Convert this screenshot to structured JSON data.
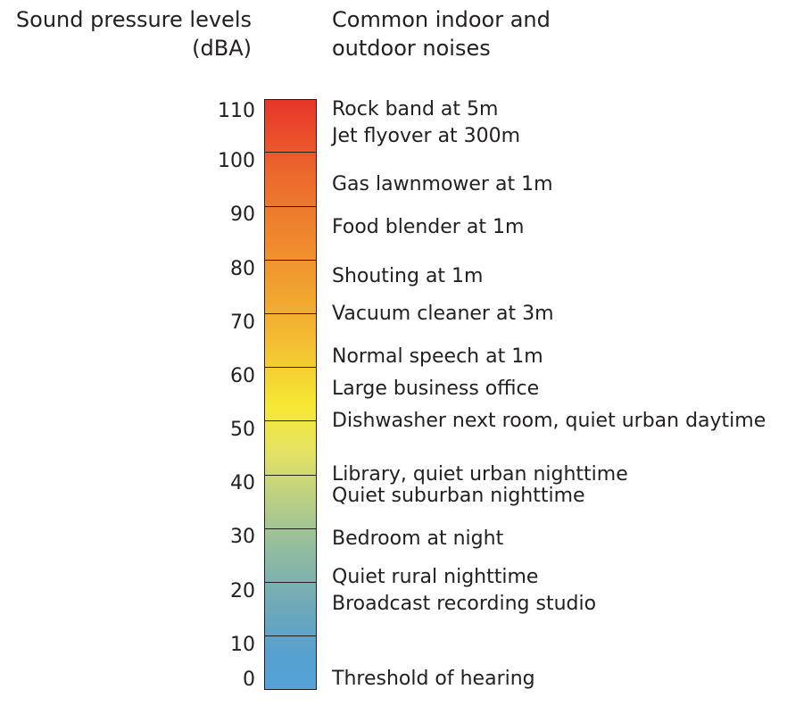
{
  "header": {
    "left_line1": "Sound pressure levels",
    "left_line2": "(dBA)",
    "right_line1": "Common indoor and",
    "right_line2": "outdoor noises"
  },
  "scale": {
    "min": 0,
    "max": 110,
    "ticks": [
      "110",
      "100",
      "90",
      "80",
      "70",
      "60",
      "50",
      "40",
      "30",
      "20",
      "10",
      "0"
    ]
  },
  "noises": [
    {
      "label": "Rock band at 5m",
      "level": 110
    },
    {
      "label": "Jet flyover at 300m",
      "level": 103
    },
    {
      "label": "Gas lawnmower at 1m",
      "level": 94
    },
    {
      "label": "Food blender at 1m",
      "level": 86
    },
    {
      "label": "Shouting at 1m",
      "level": 77
    },
    {
      "label": "Vacuum cleaner at 3m",
      "level": 70
    },
    {
      "label": "Normal speech at 1m",
      "level": 62
    },
    {
      "label": "Large business office",
      "level": 56
    },
    {
      "label": "Dishwasher next room, quiet urban daytime",
      "level": 50
    },
    {
      "label": "Library, quiet urban nighttime",
      "level": 40
    },
    {
      "label": "Quiet suburban nighttime",
      "level": 36
    },
    {
      "label": "Bedroom at night",
      "level": 28
    },
    {
      "label": "Quiet rural nighttime",
      "level": 21
    },
    {
      "label": "Broadcast recording studio",
      "level": 16
    },
    {
      "label": "Threshold of hearing",
      "level": 0
    }
  ]
}
